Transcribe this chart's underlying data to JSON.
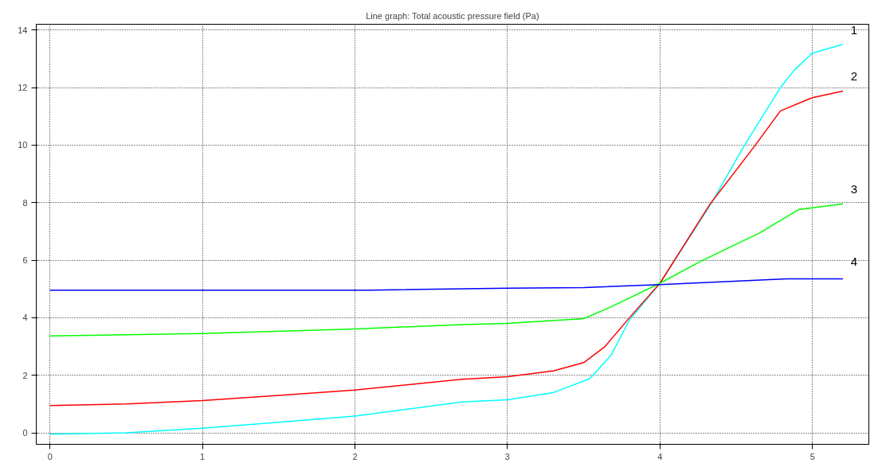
{
  "chart_data": {
    "type": "line",
    "title": "Line graph: Total acoustic pressure field (Pa)",
    "xlim": [
      -0.09,
      5.37
    ],
    "ylim": [
      -0.4,
      14.2
    ],
    "xticks": [
      0,
      1,
      2,
      3,
      4,
      5
    ],
    "yticks": [
      0,
      2,
      4,
      6,
      8,
      10,
      12,
      14
    ],
    "grid": true,
    "legend": false,
    "marker": "none",
    "line_style": "solid",
    "series": [
      {
        "name": "1",
        "color": "#00ffff",
        "x": [
          0,
          0.5,
          1,
          1.5,
          2,
          2.7,
          3,
          3.3,
          3.54,
          3.68,
          3.8,
          4.0,
          4.34,
          4.55,
          4.79,
          4.88,
          5.0,
          5.2
        ],
        "values": [
          -0.05,
          0.0,
          0.16,
          0.37,
          0.58,
          1.07,
          1.15,
          1.4,
          1.88,
          2.7,
          3.92,
          5.2,
          8.0,
          9.96,
          12.0,
          12.6,
          13.2,
          13.5
        ]
      },
      {
        "name": "2",
        "color": "#ff0000",
        "x": [
          0,
          0.5,
          1,
          1.5,
          2,
          2.7,
          3,
          3.3,
          3.5,
          3.64,
          3.8,
          4.0,
          4.33,
          4.62,
          4.79,
          5.0,
          5.2
        ],
        "values": [
          0.95,
          1.0,
          1.12,
          1.3,
          1.49,
          1.86,
          1.95,
          2.15,
          2.44,
          3.0,
          4.0,
          5.2,
          7.96,
          9.96,
          11.19,
          11.65,
          11.88
        ]
      },
      {
        "name": "3",
        "color": "#00ff00",
        "x": [
          0,
          1,
          2,
          2.7,
          3,
          3.5,
          3.68,
          4.0,
          4.27,
          4.65,
          4.91,
          5.2
        ],
        "values": [
          3.37,
          3.45,
          3.61,
          3.76,
          3.8,
          3.97,
          4.38,
          5.2,
          5.97,
          6.94,
          7.76,
          7.96
        ]
      },
      {
        "name": "4",
        "color": "#0000ff",
        "x": [
          0,
          2.1,
          3,
          3.5,
          4.0,
          4.83,
          5.2
        ],
        "values": [
          4.96,
          4.96,
          5.03,
          5.05,
          5.15,
          5.35,
          5.35
        ]
      }
    ]
  }
}
